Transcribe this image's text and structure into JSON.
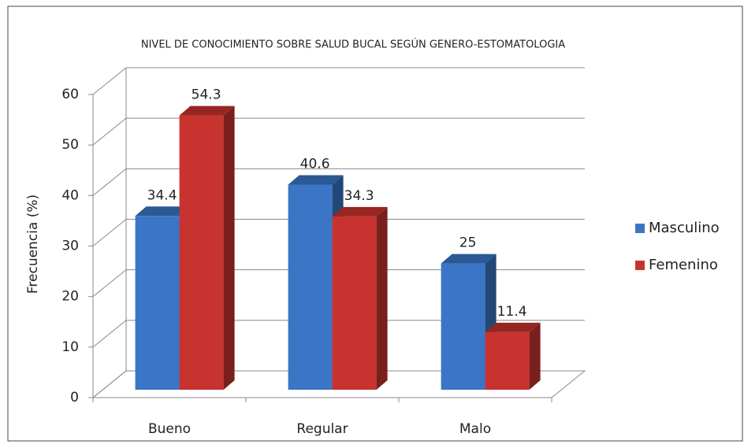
{
  "chart_data": {
    "type": "bar3d",
    "title": "NIVEL DE CONOCIMIENTO  SOBRE SALUD BUCAL SEGÚN GENERO-ESTOMATOLOGIA",
    "y_label": "Frecuencia (%)",
    "categories": [
      "Bueno",
      "Regular",
      "Malo"
    ],
    "series": [
      {
        "name": "Masculino",
        "color": "#3b76c6",
        "values": [
          34.4,
          40.6,
          25
        ]
      },
      {
        "name": "Femenino",
        "color": "#c9332f",
        "values": [
          54.3,
          34.3,
          11.4
        ]
      }
    ],
    "ylim": [
      0,
      60
    ],
    "yticks": [
      0,
      10,
      20,
      30,
      40,
      50,
      60
    ],
    "grid": true,
    "legend": "right"
  }
}
